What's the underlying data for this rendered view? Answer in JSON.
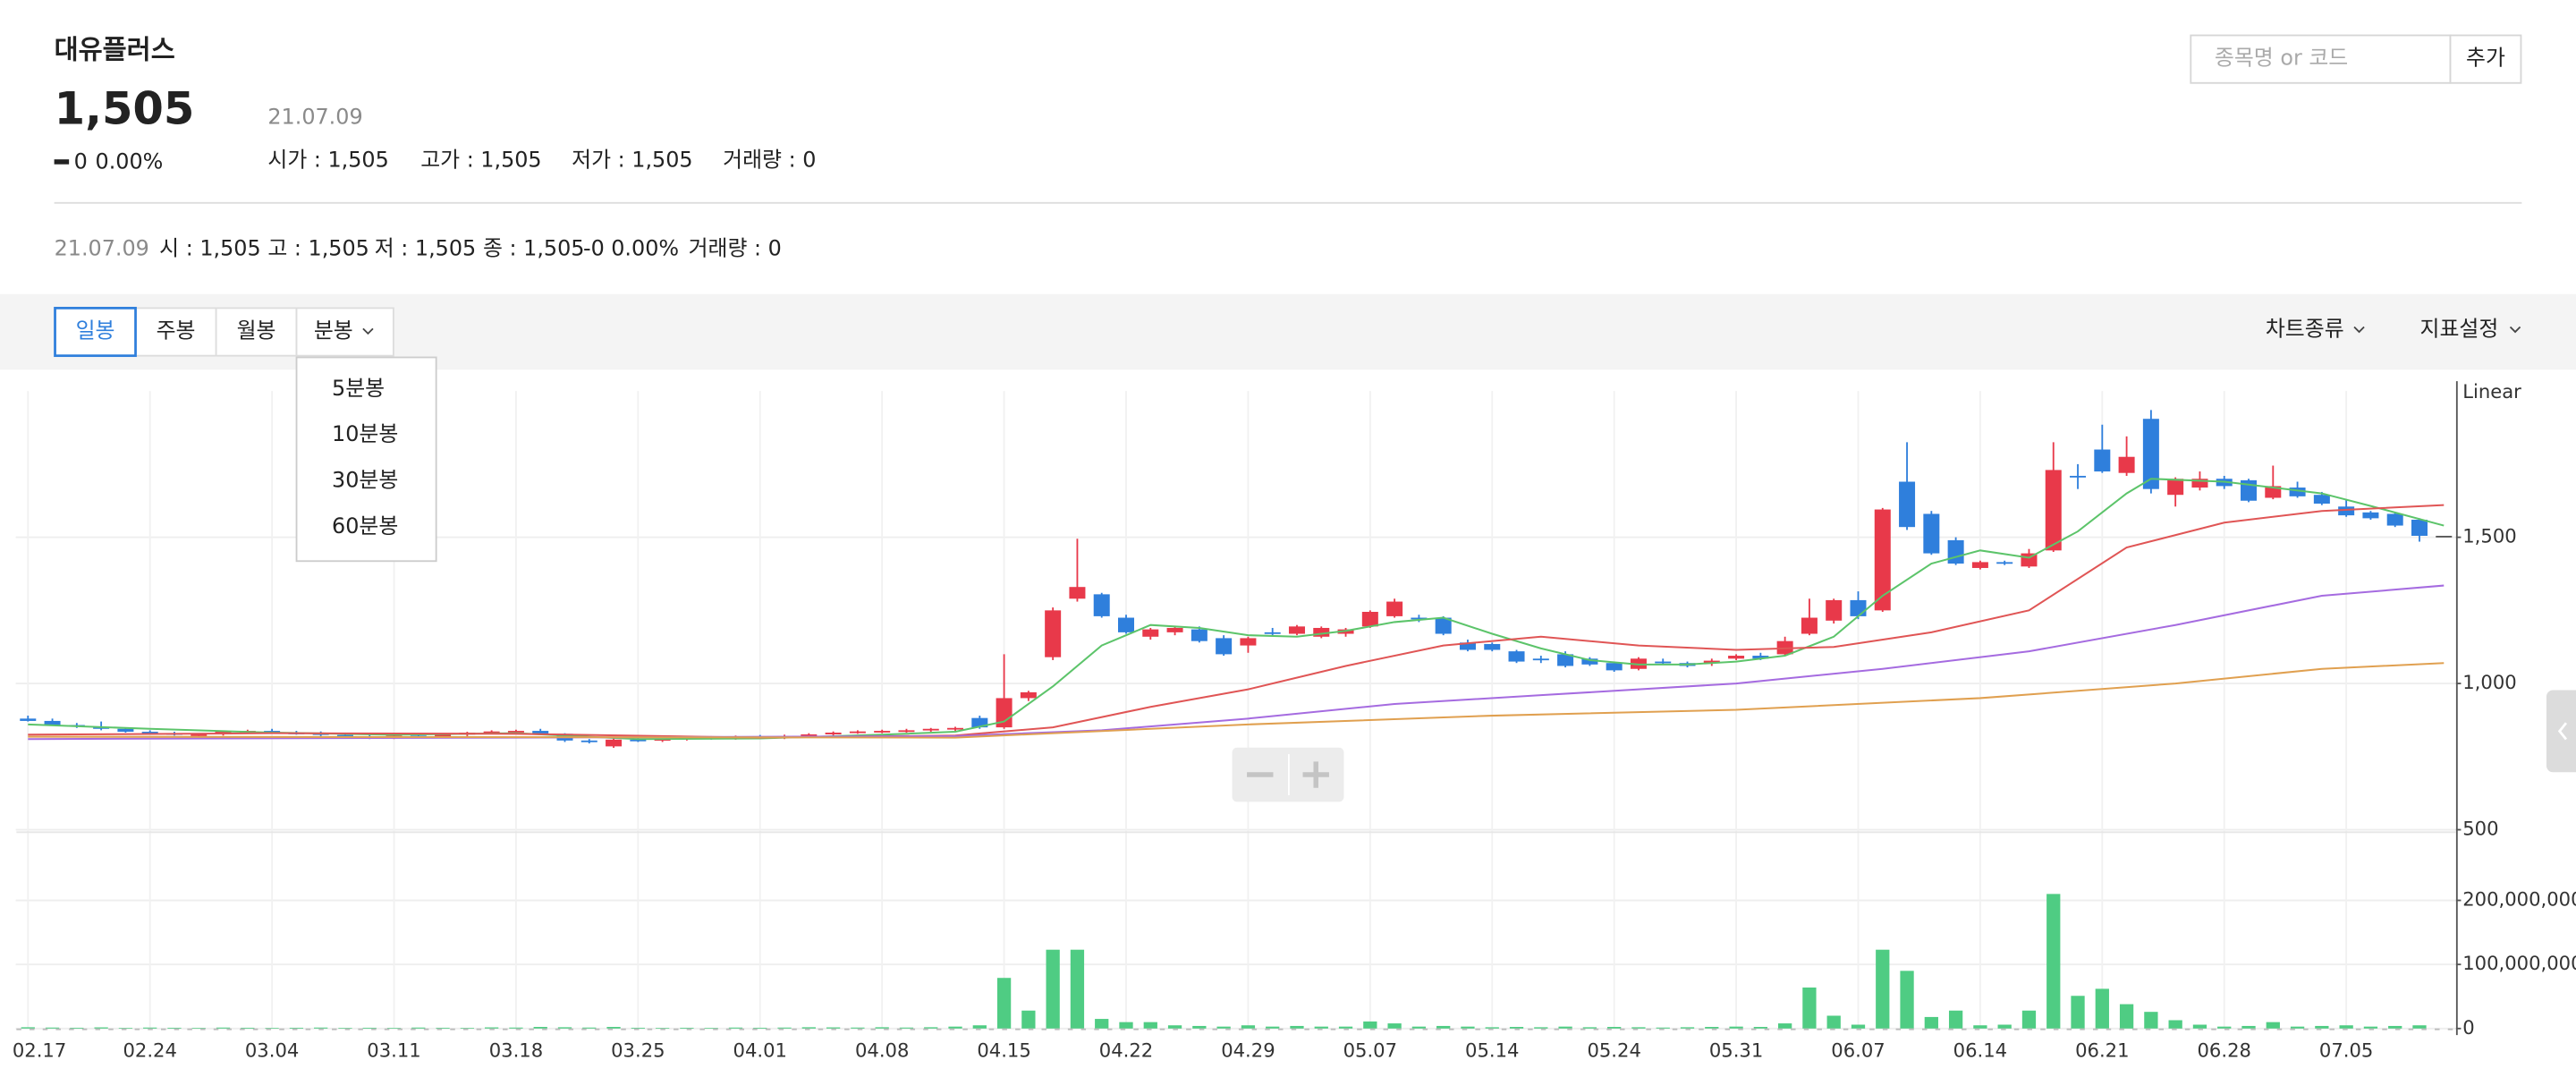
{
  "header": {
    "name": "대유플러스",
    "price": "1,505",
    "change": "0",
    "change_rate": "0.00%",
    "date": "21.07.09",
    "ohlc": [
      "시가 : 1,505",
      "고가 : 1,505",
      "저가 : 1,505",
      "거래량 : 0"
    ]
  },
  "search": {
    "placeholder": "종목명 or 코드",
    "button": "추가"
  },
  "detail": {
    "date": "21.07.09",
    "items": [
      "시 : 1,505",
      "고 : 1,505",
      "저 : 1,505",
      "종 : 1,505",
      "-0",
      "0.00%",
      "거래량 : 0"
    ]
  },
  "toolbar": {
    "tabs": [
      "일봉",
      "주봉",
      "월봉",
      "분봉"
    ],
    "menus": [
      "차트종류",
      "지표설정"
    ],
    "dropdown": [
      "5분봉",
      "10분봉",
      "30분봉",
      "60분봉"
    ]
  },
  "chart_data": {
    "type": "candlestick",
    "scale_label": "Linear",
    "grid": true,
    "up_color": "#e8394a",
    "down_color": "#2f7fdc",
    "categories": [
      "02.17",
      null,
      null,
      null,
      null,
      "02.24",
      null,
      null,
      null,
      null,
      "03.04",
      null,
      null,
      null,
      null,
      "03.11",
      null,
      null,
      null,
      null,
      "03.18",
      null,
      null,
      null,
      null,
      "03.25",
      null,
      null,
      null,
      null,
      "04.01",
      null,
      null,
      null,
      null,
      "04.08",
      null,
      null,
      null,
      null,
      "04.15",
      null,
      null,
      null,
      null,
      "04.22",
      null,
      null,
      null,
      null,
      "04.29",
      null,
      null,
      null,
      null,
      "05.07",
      null,
      null,
      null,
      null,
      "05.14",
      null,
      null,
      null,
      null,
      "05.24",
      null,
      null,
      null,
      null,
      "05.31",
      null,
      null,
      null,
      null,
      "06.07",
      null,
      null,
      null,
      null,
      "06.14",
      null,
      null,
      null,
      null,
      "06.21",
      null,
      null,
      null,
      null,
      "06.28",
      null,
      null,
      null,
      null,
      "07.05",
      null,
      null,
      null,
      null
    ],
    "open": [
      880,
      872,
      858,
      852,
      845,
      835,
      830,
      822,
      826,
      835,
      838,
      832,
      830,
      824,
      818,
      814,
      822,
      818,
      825,
      832,
      836,
      838,
      828,
      805,
      785,
      808,
      805,
      810,
      815,
      812,
      818,
      815,
      820,
      826,
      832,
      836,
      838,
      840,
      845,
      882,
      850,
      950,
      1090,
      1290,
      1305,
      1225,
      1160,
      1175,
      1185,
      1155,
      1130,
      1175,
      1170,
      1160,
      1170,
      1195,
      1230,
      1225,
      1225,
      1140,
      1135,
      1110,
      1085,
      1100,
      1085,
      1070,
      1050,
      1075,
      1070,
      1070,
      1085,
      1095,
      1100,
      1170,
      1215,
      1285,
      1250,
      1690,
      1580,
      1490,
      1395,
      1415,
      1400,
      1455,
      1710,
      1800,
      1720,
      1905,
      1645,
      1670,
      1700,
      1695,
      1635,
      1670,
      1645,
      1605,
      1585,
      1580,
      1560,
      1505
    ],
    "high": [
      890,
      880,
      865,
      870,
      850,
      840,
      835,
      828,
      838,
      842,
      845,
      838,
      836,
      830,
      826,
      826,
      830,
      828,
      835,
      840,
      842,
      845,
      830,
      810,
      812,
      815,
      812,
      820,
      820,
      822,
      824,
      825,
      830,
      836,
      840,
      842,
      845,
      848,
      852,
      890,
      1100,
      975,
      1260,
      1495,
      1310,
      1235,
      1190,
      1195,
      1195,
      1165,
      1160,
      1190,
      1200,
      1195,
      1190,
      1250,
      1290,
      1235,
      1230,
      1150,
      1140,
      1115,
      1095,
      1110,
      1090,
      1075,
      1090,
      1085,
      1075,
      1085,
      1100,
      1105,
      1160,
      1290,
      1290,
      1315,
      1600,
      1825,
      1590,
      1500,
      1420,
      1420,
      1460,
      1825,
      1750,
      1885,
      1845,
      1935,
      1705,
      1725,
      1710,
      1700,
      1745,
      1690,
      1655,
      1630,
      1590,
      1585,
      1565,
      1505
    ],
    "low": [
      870,
      855,
      848,
      840,
      832,
      825,
      822,
      815,
      822,
      828,
      830,
      825,
      820,
      815,
      810,
      810,
      815,
      815,
      820,
      828,
      830,
      825,
      800,
      795,
      780,
      800,
      800,
      805,
      808,
      808,
      812,
      810,
      815,
      822,
      828,
      830,
      832,
      835,
      838,
      845,
      845,
      940,
      1080,
      1280,
      1225,
      1170,
      1150,
      1165,
      1140,
      1095,
      1105,
      1165,
      1165,
      1155,
      1160,
      1190,
      1225,
      1210,
      1165,
      1110,
      1110,
      1070,
      1070,
      1055,
      1060,
      1040,
      1045,
      1065,
      1055,
      1060,
      1080,
      1080,
      1095,
      1165,
      1205,
      1220,
      1245,
      1525,
      1440,
      1405,
      1390,
      1405,
      1395,
      1450,
      1665,
      1720,
      1710,
      1650,
      1605,
      1660,
      1665,
      1620,
      1630,
      1635,
      1610,
      1570,
      1560,
      1535,
      1485,
      1505
    ],
    "close": [
      872,
      858,
      852,
      845,
      835,
      828,
      825,
      826,
      835,
      838,
      832,
      830,
      824,
      818,
      815,
      822,
      818,
      825,
      832,
      836,
      838,
      828,
      805,
      800,
      808,
      805,
      810,
      815,
      812,
      818,
      815,
      820,
      826,
      832,
      836,
      838,
      840,
      845,
      848,
      850,
      950,
      970,
      1250,
      1330,
      1230,
      1175,
      1185,
      1190,
      1145,
      1100,
      1155,
      1170,
      1195,
      1190,
      1185,
      1245,
      1280,
      1220,
      1170,
      1115,
      1115,
      1075,
      1080,
      1060,
      1065,
      1045,
      1085,
      1070,
      1060,
      1078,
      1095,
      1085,
      1145,
      1225,
      1285,
      1230,
      1595,
      1535,
      1445,
      1410,
      1415,
      1410,
      1445,
      1730,
      1705,
      1725,
      1775,
      1665,
      1700,
      1700,
      1675,
      1625,
      1675,
      1640,
      1615,
      1575,
      1565,
      1540,
      1505,
      1505
    ],
    "ylim": [
      500,
      2000
    ],
    "yticks": [
      500,
      {
        "value": 1000,
        "label": "1,000"
      },
      {
        "value": 1500,
        "label": "1,500"
      }
    ],
    "moving_averages": [
      {
        "color": "#5cc46a",
        "x": [
          0,
          5,
          10,
          15,
          20,
          25,
          30,
          35,
          38,
          40,
          42,
          44,
          46,
          48,
          50,
          52,
          54,
          56,
          58,
          60,
          62,
          64,
          66,
          68,
          70,
          72,
          74,
          76,
          78,
          80,
          82,
          84,
          86,
          87,
          90,
          92,
          94,
          96,
          99
        ],
        "values": [
          860,
          845,
          832,
          825,
          830,
          810,
          812,
          825,
          835,
          870,
          990,
          1130,
          1200,
          1190,
          1165,
          1160,
          1180,
          1210,
          1225,
          1170,
          1120,
          1080,
          1065,
          1065,
          1075,
          1095,
          1160,
          1300,
          1410,
          1455,
          1430,
          1520,
          1650,
          1700,
          1690,
          1670,
          1650,
          1607,
          1540
        ]
      },
      {
        "color": "#e05555",
        "x": [
          0,
          10,
          20,
          30,
          38,
          42,
          46,
          50,
          54,
          58,
          62,
          66,
          70,
          74,
          78,
          82,
          86,
          90,
          94,
          99
        ],
        "values": [
          825,
          830,
          828,
          815,
          822,
          850,
          920,
          980,
          1060,
          1130,
          1160,
          1130,
          1115,
          1125,
          1175,
          1250,
          1465,
          1550,
          1590,
          1610
        ]
      },
      {
        "color": "#a56be0",
        "x": [
          0,
          20,
          38,
          44,
          50,
          56,
          62,
          70,
          76,
          82,
          88,
          94,
          99
        ],
        "values": [
          810,
          815,
          820,
          840,
          880,
          930,
          960,
          1000,
          1050,
          1110,
          1200,
          1300,
          1335
        ]
      },
      {
        "color": "#e0a050",
        "x": [
          0,
          38,
          50,
          60,
          70,
          80,
          88,
          94,
          99
        ],
        "values": [
          818,
          815,
          860,
          890,
          910,
          950,
          1000,
          1050,
          1070
        ]
      }
    ],
    "volume": {
      "color": "#4fcc83",
      "values": [
        2000000,
        1500000,
        1200000,
        1800000,
        1000000,
        1500000,
        1200000,
        1000000,
        1500000,
        1200000,
        1000000,
        1200000,
        1500000,
        1000000,
        1200000,
        1000000,
        1500000,
        1200000,
        1000000,
        1800000,
        1500000,
        2500000,
        2000000,
        1500000,
        2500000,
        1200000,
        1000000,
        1200000,
        1000000,
        1500000,
        1200000,
        1500000,
        2000000,
        1800000,
        1500000,
        2000000,
        1500000,
        2000000,
        3000000,
        5000000,
        79000000,
        28000000,
        123000000,
        123000000,
        15000000,
        10000000,
        10000000,
        5000000,
        4000000,
        3000000,
        5000000,
        3000000,
        4000000,
        3000000,
        3000000,
        11000000,
        8000000,
        3000000,
        4000000,
        3000000,
        2000000,
        2500000,
        2000000,
        3000000,
        2000000,
        2500000,
        2000000,
        1500000,
        2000000,
        2500000,
        3000000,
        2500000,
        8000000,
        64000000,
        20000000,
        6000000,
        123000000,
        90000000,
        18000000,
        28000000,
        5000000,
        6000000,
        28000000,
        210000000,
        51000000,
        62000000,
        38000000,
        26000000,
        13000000,
        6000000,
        3000000,
        4000000,
        10000000,
        3000000,
        4000000,
        5000000,
        3000000,
        4000000,
        5000000,
        0
      ],
      "ylim": [
        0,
        300000000
      ],
      "yticks": [
        0,
        {
          "value": 100000000,
          "label": "100,000,000"
        },
        {
          "value": 200000000,
          "label": "200,000,000"
        }
      ]
    }
  }
}
